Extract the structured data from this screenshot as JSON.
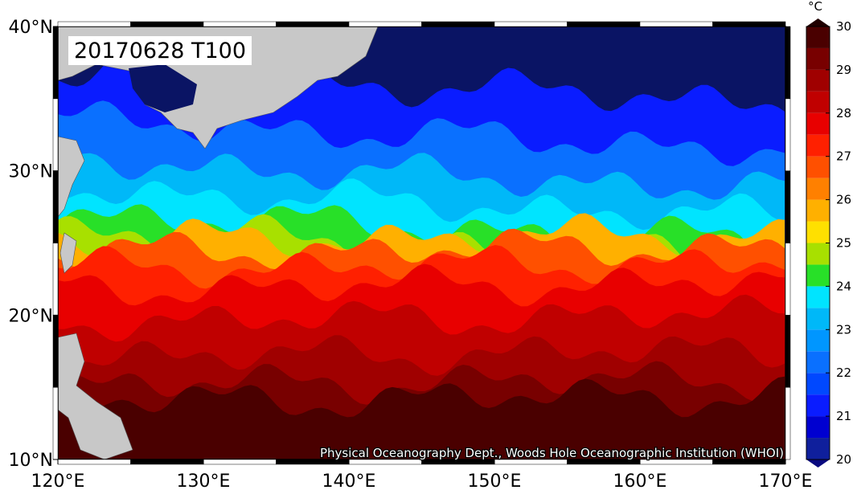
{
  "map": {
    "title": "20170628 T100",
    "credit": "Physical Oceanography Dept., Woods Hole Oceanographic Institution (WHOI)",
    "xlim": [
      120,
      170
    ],
    "ylim": [
      10,
      40
    ],
    "xticks": [
      {
        "value": 120,
        "label": "120°E"
      },
      {
        "value": 130,
        "label": "130°E"
      },
      {
        "value": 140,
        "label": "140°E"
      },
      {
        "value": 150,
        "label": "150°E"
      },
      {
        "value": 160,
        "label": "160°E"
      },
      {
        "value": 170,
        "label": "170°E"
      }
    ],
    "yticks": [
      {
        "value": 10,
        "label": "10°N"
      },
      {
        "value": 20,
        "label": "20°N"
      },
      {
        "value": 30,
        "label": "30°N"
      },
      {
        "value": 40,
        "label": "40°N"
      }
    ]
  },
  "colorbar": {
    "unit": "°C",
    "lim": [
      20,
      30
    ],
    "ticks": [
      20,
      21,
      22,
      23,
      24,
      25,
      26,
      27,
      28,
      29,
      30
    ],
    "colors": [
      "#0f1f9c",
      "#0000d0",
      "#0a1cff",
      "#0048ff",
      "#0a70ff",
      "#0096ff",
      "#00b8f8",
      "#00e4ff",
      "#28e028",
      "#a8e000",
      "#ffe000",
      "#ffb000",
      "#ff8000",
      "#ff5000",
      "#ff2000",
      "#e80000",
      "#c00000",
      "#a00000",
      "#780000",
      "#4a0000"
    ]
  }
}
